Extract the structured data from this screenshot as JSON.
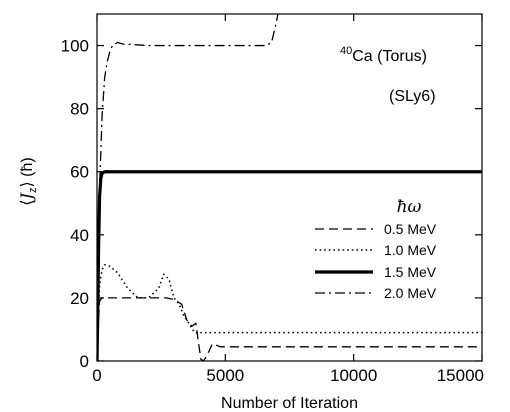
{
  "chart_data": {
    "type": "line",
    "xlabel": "Number of Iteration",
    "ylabel": "⟨J_z⟩ (ħ)",
    "xlim": [
      0,
      15000
    ],
    "ylim": [
      0,
      110
    ],
    "xticks": [
      0,
      5000,
      10000,
      15000
    ],
    "yticks": [
      0,
      20,
      40,
      60,
      80,
      100
    ],
    "grid": false,
    "annotations": [
      "40Ca (Torus)",
      "(SLy6)"
    ],
    "legend": {
      "title": "ħω",
      "placement": "right-middle"
    },
    "series": [
      {
        "name": "0.5 MeV",
        "style": "dashed",
        "x": [
          0,
          40,
          100,
          200,
          400,
          800,
          1500,
          2200,
          2700,
          3000,
          3300,
          3500,
          3700,
          3850,
          3950,
          4050,
          4150,
          4300,
          4500,
          4800,
          5500,
          7000,
          10000,
          15000
        ],
        "y": [
          0,
          10,
          19,
          20,
          20,
          20,
          20,
          20,
          20,
          19.5,
          18,
          13,
          11,
          12,
          6,
          0.5,
          0,
          2,
          5.5,
          4.5,
          4.5,
          4.5,
          4.5,
          4.5
        ]
      },
      {
        "name": "1.0 MeV",
        "style": "dotted",
        "x": [
          0,
          40,
          100,
          200,
          300,
          500,
          800,
          1200,
          1600,
          2000,
          2400,
          2600,
          2800,
          3000,
          3200,
          3400,
          3500,
          3650,
          3800,
          4000,
          4300,
          5000,
          7000,
          10000,
          15000
        ],
        "y": [
          0,
          12,
          24,
          29,
          30.5,
          30,
          28,
          23,
          20,
          20,
          23,
          27.5,
          26,
          20,
          18,
          14,
          13,
          11,
          9,
          9,
          9,
          9,
          9,
          9,
          9
        ]
      },
      {
        "name": "1.5 MeV",
        "style": "solid",
        "x": [
          0,
          30,
          60,
          100,
          150,
          200,
          300,
          500,
          15000
        ],
        "y": [
          0,
          15,
          35,
          52,
          58,
          59.5,
          60,
          60,
          60
        ]
      },
      {
        "name": "2.0 MeV",
        "style": "dashdot",
        "x": [
          0,
          50,
          100,
          200,
          300,
          400,
          500,
          600,
          800,
          1000,
          2000,
          4000,
          6000,
          6600,
          6800,
          6950,
          7050
        ],
        "y": [
          0,
          25,
          55,
          78,
          90,
          95,
          98,
          100,
          101,
          100.5,
          100,
          100,
          100,
          100,
          101,
          106,
          110
        ]
      }
    ]
  }
}
